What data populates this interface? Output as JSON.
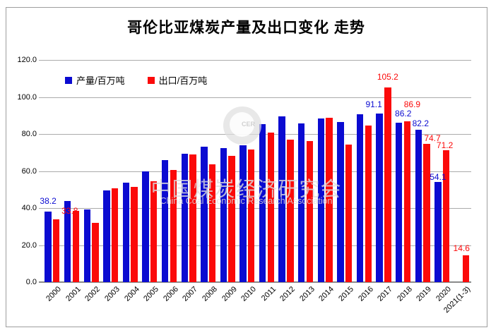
{
  "title": "哥伦比亚煤炭产量及出口变化 走势",
  "legend": [
    {
      "label": "产量/百万吨",
      "color": "#0b0bd1"
    },
    {
      "label": "出口/百万吨",
      "color": "#fb0a0a"
    }
  ],
  "watermark": {
    "logo_initials": "CER",
    "line1": "中国煤炭经济研究会",
    "line2": "China Coal Economic Research Association"
  },
  "y_axis": {
    "ticks": [
      "120.0",
      "100.0",
      "80.0",
      "60.0",
      "40.0",
      "20.0",
      "0.0"
    ]
  },
  "colors": {
    "production": "#0b0bd1",
    "export": "#fb0a0a",
    "grid": "#ababab",
    "axis": "#8a8a8a"
  },
  "chart_data": {
    "type": "bar",
    "title": "哥伦比亚煤炭产量及出口变化 走势",
    "categories": [
      "2000",
      "2001",
      "2002",
      "2003",
      "2004",
      "2005",
      "2006",
      "2007",
      "2008",
      "2009",
      "2010",
      "2011",
      "2012",
      "2013",
      "2014",
      "2015",
      "2016",
      "2017",
      "2018",
      "2019",
      "2020",
      "2021(1-3)"
    ],
    "series": [
      {
        "name": "产量/百万吨",
        "color": "#0b0bd1",
        "values": [
          38.2,
          44.0,
          39.4,
          49.5,
          53.7,
          59.7,
          65.9,
          69.2,
          73.0,
          72.4,
          74.0,
          85.5,
          89.5,
          85.7,
          88.3,
          86.4,
          90.8,
          91.1,
          86.2,
          82.2,
          54.1,
          null
        ],
        "labeled_indices": [
          0,
          17,
          18,
          19,
          20
        ]
      },
      {
        "name": "出口/百万吨",
        "color": "#fb0a0a",
        "values": [
          33.8,
          38.5,
          32.0,
          50.8,
          51.4,
          54.6,
          60.7,
          68.8,
          63.5,
          68.2,
          71.5,
          80.6,
          77.1,
          76.2,
          88.9,
          74.3,
          84.5,
          105.2,
          86.9,
          74.7,
          71.2,
          14.6
        ],
        "labeled_indices": [
          0,
          17,
          18,
          19,
          20,
          21
        ]
      }
    ],
    "ylabel": "百万吨",
    "ylim": [
      0,
      120
    ],
    "y_step": 20,
    "grid": true,
    "legend_position": "top-left"
  }
}
